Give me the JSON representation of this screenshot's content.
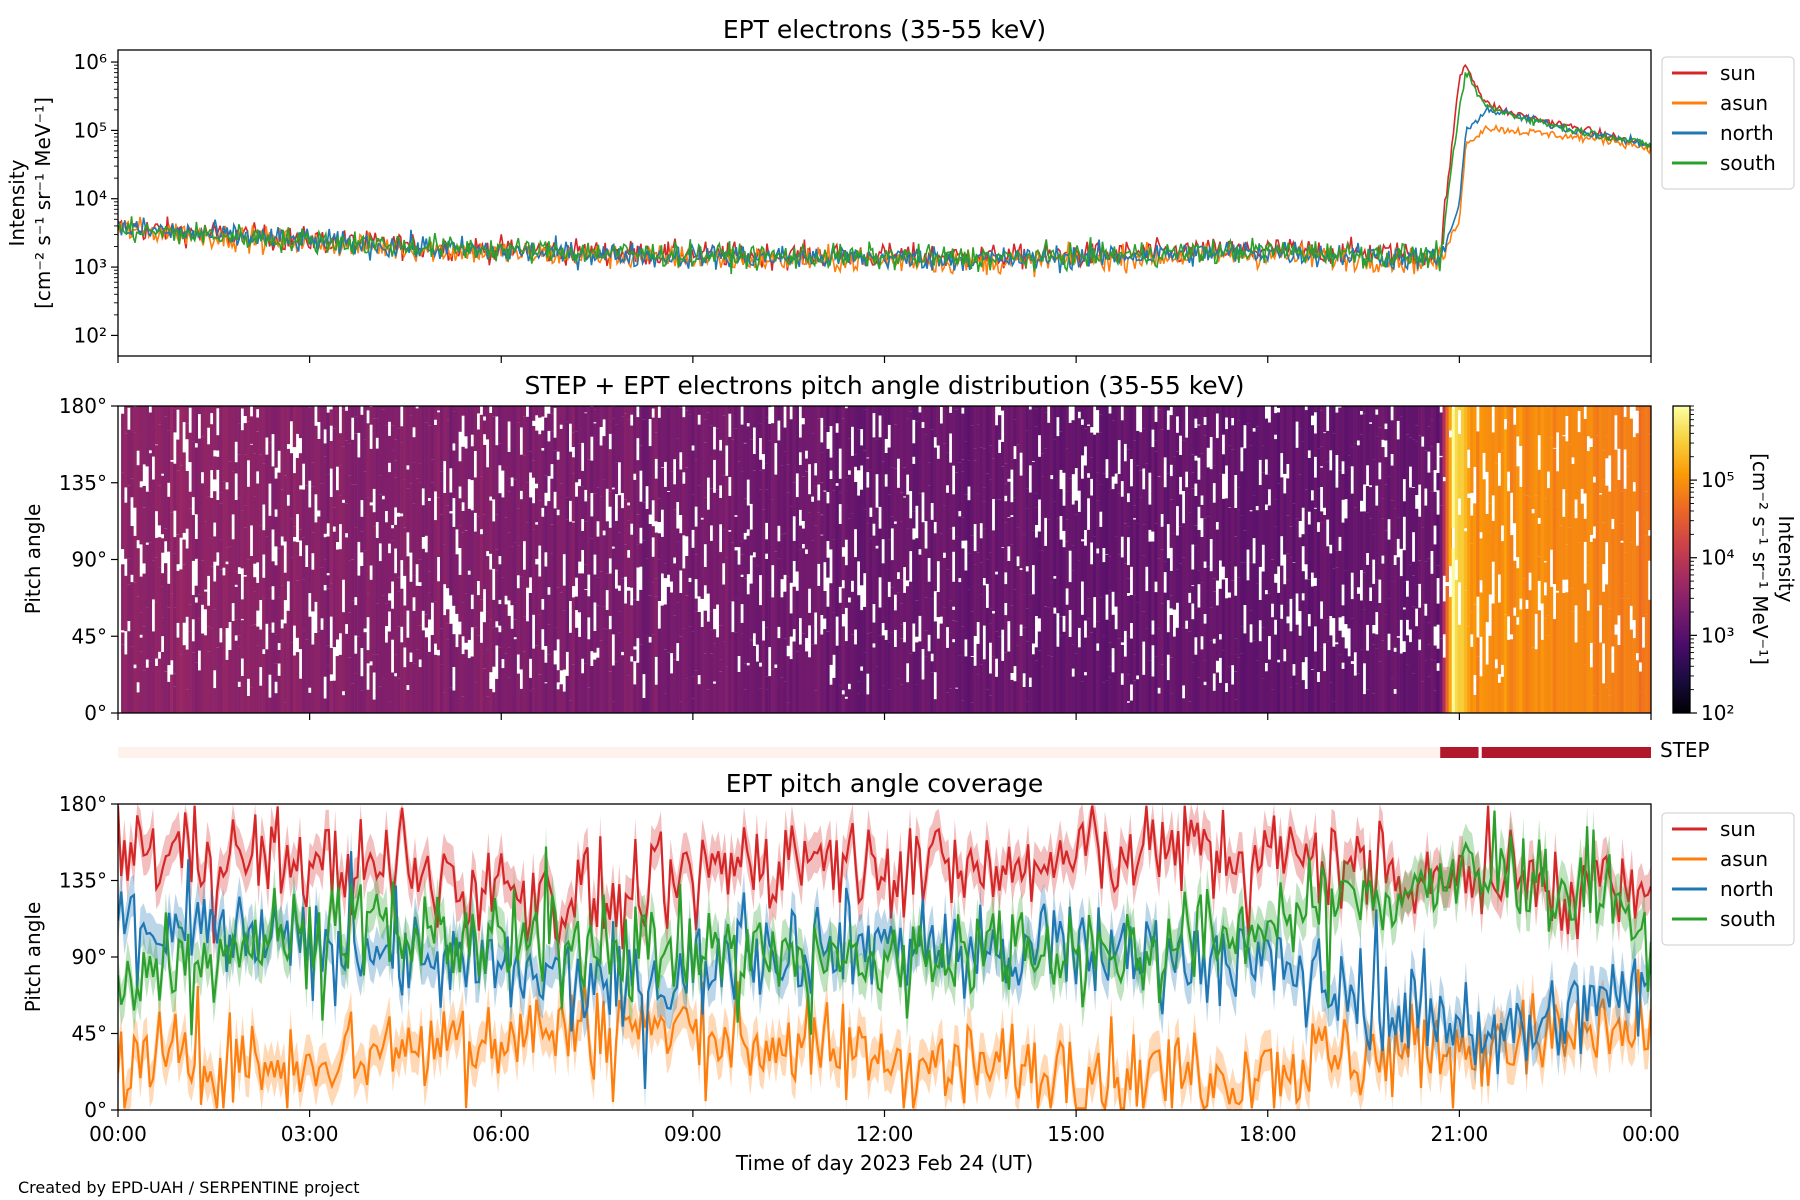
{
  "chart_data": [
    {
      "type": "line",
      "title": "EPT electrons (35-55 keV)",
      "ylabel_line1": "Intensity",
      "ylabel_line2": "[cm⁻² s⁻¹ sr⁻¹ MeV⁻¹]",
      "yscale": "log",
      "ylim": [
        50,
        1500000
      ],
      "yticks": [
        "10²",
        "10³",
        "10⁴",
        "10⁵",
        "10⁶"
      ],
      "xlim": [
        "2023-02-24 00:00",
        "2023-02-25 00:00"
      ],
      "legend": "outside-right",
      "series": [
        {
          "name": "sun",
          "color": "#d62728",
          "values": [
            3800,
            3200,
            2700,
            2300,
            2000,
            1800,
            1600,
            1500,
            1450,
            1400,
            1600,
            1800,
            1500,
            600000,
            950000,
            250000,
            180000,
            140000,
            110000,
            80000,
            60000
          ]
        },
        {
          "name": "asun",
          "color": "#ff7f0e",
          "values": [
            3600,
            3000,
            2500,
            2100,
            1800,
            1600,
            1400,
            1300,
            1250,
            1200,
            1400,
            1500,
            1200,
            5000,
            60000,
            110000,
            100000,
            90000,
            80000,
            70000,
            55000
          ]
        },
        {
          "name": "north",
          "color": "#1f77b4",
          "values": [
            3700,
            3100,
            2600,
            2200,
            1900,
            1700,
            1500,
            1400,
            1350,
            1300,
            1500,
            1700,
            1300,
            8000,
            90000,
            200000,
            170000,
            130000,
            100000,
            80000,
            60000
          ]
        },
        {
          "name": "south",
          "color": "#2ca02c",
          "values": [
            3500,
            3000,
            2600,
            2300,
            2000,
            1800,
            1600,
            1450,
            1400,
            1350,
            1550,
            1750,
            1400,
            200000,
            700000,
            230000,
            170000,
            130000,
            100000,
            80000,
            60000
          ]
        }
      ],
      "x_hours": [
        0,
        1.2,
        2.4,
        3.6,
        4.8,
        6,
        8,
        10,
        12,
        14,
        16,
        18,
        20.7,
        21.0,
        21.1,
        21.4,
        21.8,
        22.3,
        22.8,
        23.4,
        24
      ]
    },
    {
      "type": "heatmap",
      "title": "STEP + EPT electrons pitch angle distribution (35-55 keV)",
      "ylabel": "Pitch angle",
      "yticks": [
        "0°",
        "45°",
        "90°",
        "135°",
        "180°"
      ],
      "ylim": [
        0,
        180
      ],
      "colorbar": {
        "label_line1": "Intensity",
        "label_line2": "[cm⁻² s⁻¹ sr⁻¹ MeV⁻¹]",
        "scale": "log",
        "range": [
          100,
          900000
        ],
        "ticks": [
          "10²",
          "10³",
          "10⁴",
          "10⁵"
        ],
        "colormap": [
          "#000004",
          "#1b0c41",
          "#4a0c6b",
          "#781c6d",
          "#a52c60",
          "#cf4446",
          "#ed6925",
          "#fb9b06",
          "#f7d13d",
          "#fcffa4"
        ]
      },
      "intensity_profile_hours": [
        0,
        6,
        12,
        18,
        20.7,
        20.9,
        21.2,
        22,
        24
      ],
      "intensity_profile_values": [
        3500,
        2500,
        1500,
        1300,
        1400,
        700000,
        90000,
        90000,
        60000
      ]
    },
    {
      "type": "bar",
      "label": "STEP",
      "segments": [
        {
          "start_hour": 0,
          "end_hour": 20.7,
          "state": "off",
          "color": "#fff1ec"
        },
        {
          "start_hour": 20.7,
          "end_hour": 21.3,
          "state": "on",
          "color": "#b2182b"
        },
        {
          "start_hour": 21.35,
          "end_hour": 24,
          "state": "on",
          "color": "#b2182b"
        }
      ]
    },
    {
      "type": "line",
      "title": "EPT pitch angle coverage",
      "ylabel": "Pitch angle",
      "yticks": [
        "0°",
        "45°",
        "90°",
        "135°",
        "180°"
      ],
      "ylim": [
        0,
        180
      ],
      "xlabel": "Time of day 2023 Feb 24 (UT)",
      "xticks": [
        "00:00",
        "03:00",
        "06:00",
        "09:00",
        "12:00",
        "15:00",
        "18:00",
        "21:00",
        "00:00"
      ],
      "legend": "outside-right",
      "series": [
        {
          "name": "sun",
          "color": "#d62728",
          "values": [
            155,
            150,
            140,
            130,
            120,
            150,
            145,
            140,
            155,
            150,
            140,
            135,
            125
          ]
        },
        {
          "name": "asun",
          "color": "#ff7f0e",
          "values": [
            30,
            25,
            35,
            45,
            50,
            40,
            30,
            25,
            20,
            25,
            35,
            40,
            45
          ]
        },
        {
          "name": "north",
          "color": "#1f77b4",
          "values": [
            110,
            100,
            95,
            80,
            70,
            95,
            100,
            90,
            95,
            85,
            60,
            45,
            75
          ]
        },
        {
          "name": "south",
          "color": "#2ca02c",
          "values": [
            80,
            100,
            110,
            95,
            100,
            90,
            85,
            100,
            90,
            110,
            130,
            140,
            110
          ]
        }
      ],
      "x_hours": [
        0,
        2,
        4,
        6,
        8,
        10,
        12,
        14,
        16,
        18,
        20,
        22,
        24
      ]
    }
  ],
  "credit": "Created by EPD-UAH / SERPENTINE project"
}
